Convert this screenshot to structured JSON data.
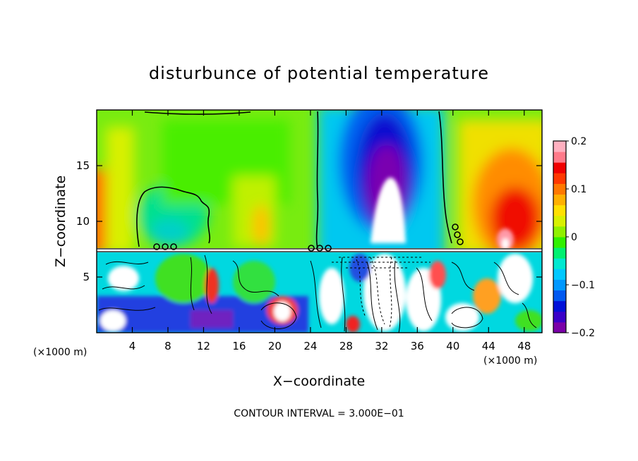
{
  "chart_data": {
    "type": "heatmap",
    "title": "disturbunce of potential temperature",
    "xlabel": "X−coordinate",
    "ylabel": "Z−coordinate",
    "x_unit": "(×1000 m)",
    "x_unit_right": "(×1000 m)",
    "xlim": [
      0,
      50
    ],
    "ylim": [
      0,
      20
    ],
    "x_ticks": [
      4,
      8,
      12,
      16,
      20,
      24,
      28,
      32,
      36,
      40,
      44,
      48
    ],
    "y_ticks": [
      5,
      10,
      15
    ],
    "colorbar": {
      "range": [
        -0.2,
        0.2
      ],
      "tick_values": [
        0.2,
        0.1,
        0,
        -0.1,
        -0.2
      ],
      "tick_labels": [
        "0.2",
        "0.1",
        "0",
        "−0.1",
        "−0.2"
      ],
      "colors": [
        "#7a00a8",
        "#3a00c8",
        "#0010d8",
        "#0058f0",
        "#0098ff",
        "#00c8ff",
        "#00e8d0",
        "#00f070",
        "#30f000",
        "#90f000",
        "#d8f000",
        "#ffe000",
        "#ffb000",
        "#ff7800",
        "#ff3800",
        "#f00000",
        "#ff7a8a",
        "#ffb0c0"
      ]
    },
    "interface_height": 7.2,
    "contour_interval": 0.3,
    "annotation": "CONTOUR INTERVAL = 3.000E−01",
    "upper_field_samples": {
      "x": [
        0,
        4,
        8,
        12,
        16,
        20,
        24,
        26,
        28,
        30,
        32,
        34,
        36,
        38,
        40,
        44,
        46,
        48,
        50
      ],
      "z": [
        15,
        10
      ],
      "values": [
        [
          0.06,
          0.02,
          0.0,
          0.02,
          0.04,
          0.04,
          -0.05,
          -0.12,
          -0.16,
          -0.19,
          -0.2,
          -0.16,
          -0.08,
          -0.02,
          0.03,
          0.1,
          0.13,
          0.1,
          0.06
        ],
        [
          0.14,
          0.04,
          -0.02,
          0.0,
          0.06,
          0.05,
          -0.06,
          -0.12,
          -0.16,
          -0.2,
          -0.2,
          -0.15,
          -0.07,
          0.0,
          0.05,
          0.12,
          0.17,
          0.12,
          0.06
        ]
      ]
    }
  }
}
